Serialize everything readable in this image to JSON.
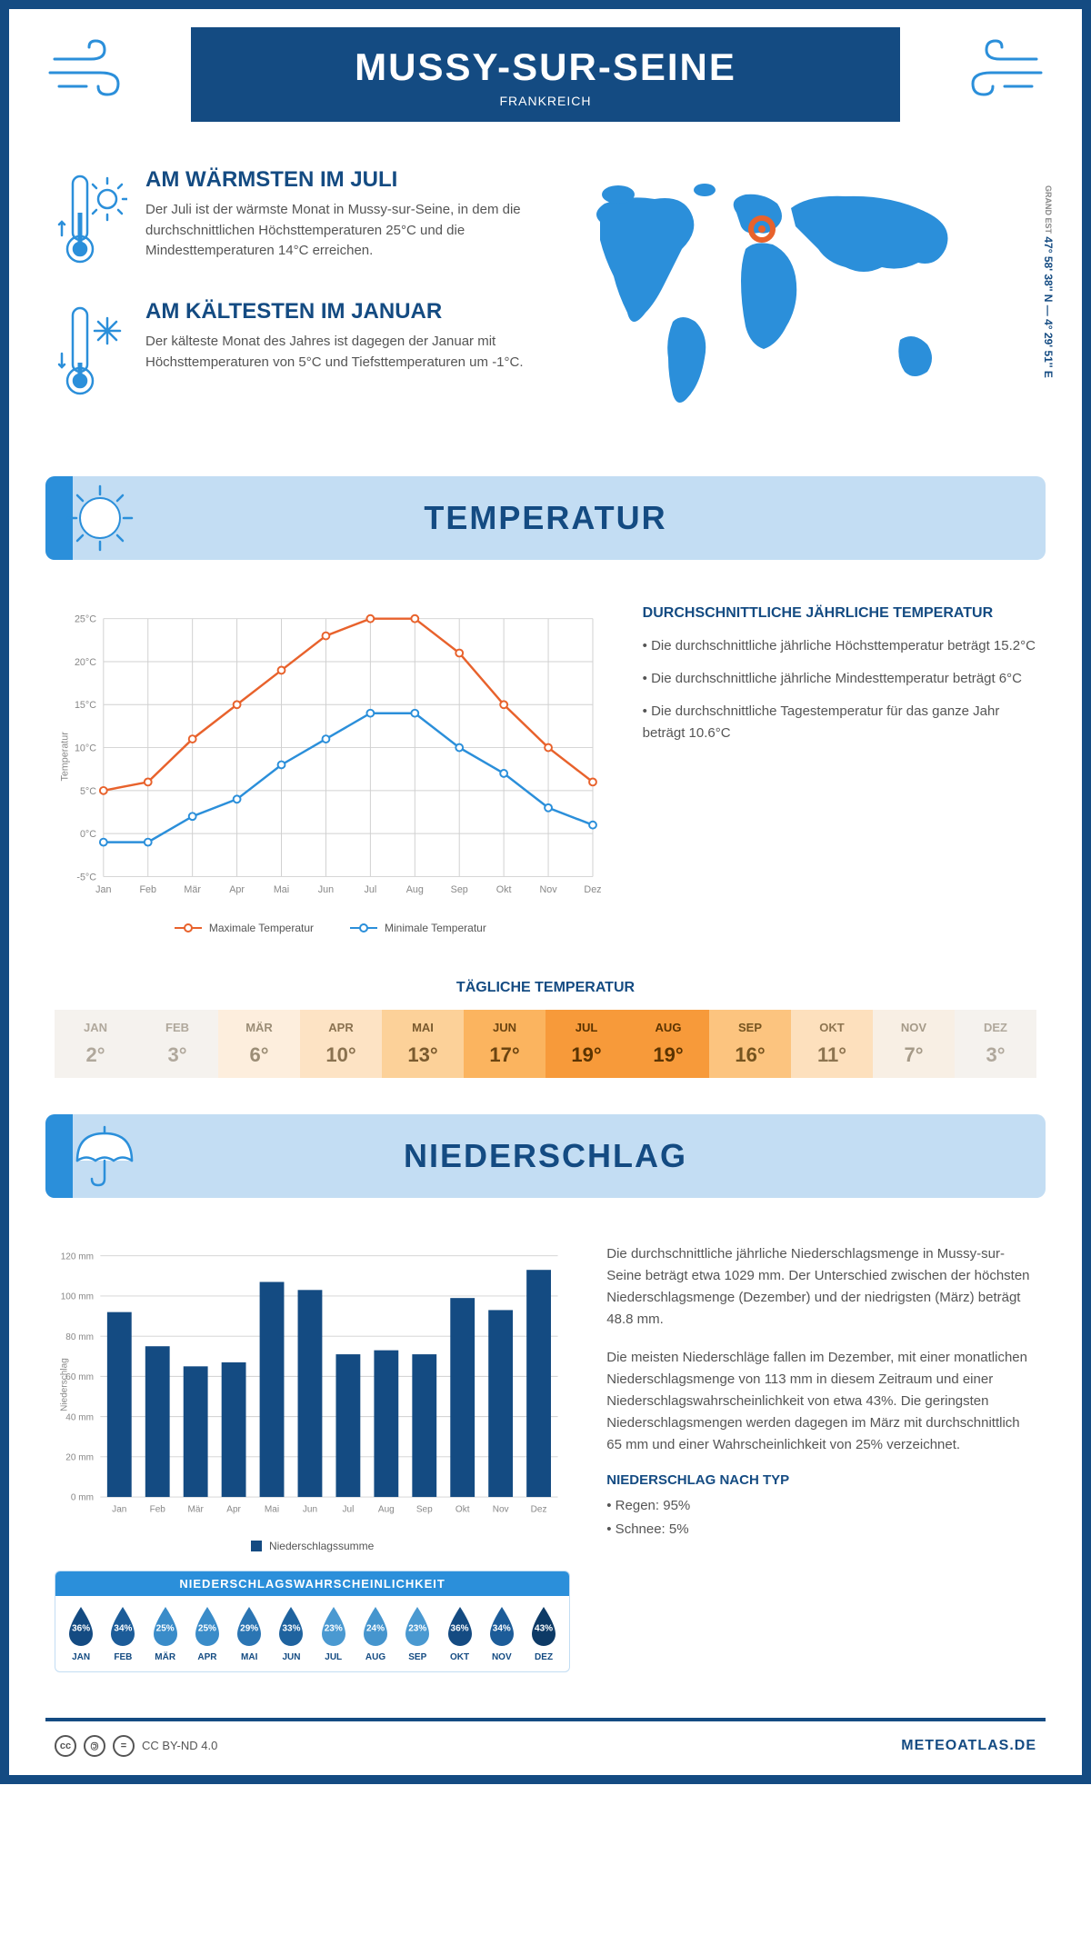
{
  "header": {
    "title": "MUSSY-SUR-SEINE",
    "subtitle": "FRANKREICH"
  },
  "coords": {
    "main": "47° 58' 38'' N — 4° 29' 51'' E",
    "sub": "GRAND EST"
  },
  "facts": {
    "warm": {
      "title": "AM WÄRMSTEN IM JULI",
      "text": "Der Juli ist der wärmste Monat in Mussy-sur-Seine, in dem die durchschnittlichen Höchsttemperaturen 25°C und die Mindesttemperaturen 14°C erreichen."
    },
    "cold": {
      "title": "AM KÄLTESTEN IM JANUAR",
      "text": "Der kälteste Monat des Jahres ist dagegen der Januar mit Höchsttemperaturen von 5°C und Tiefsttemperaturen um -1°C."
    }
  },
  "temperature": {
    "section_title": "TEMPERATUR",
    "info_title": "DURCHSCHNITTLICHE JÄHRLICHE TEMPERATUR",
    "bullets": [
      "• Die durchschnittliche jährliche Höchsttemperatur beträgt 15.2°C",
      "• Die durchschnittliche jährliche Mindesttemperatur beträgt 6°C",
      "• Die durchschnittliche Tagestemperatur für das ganze Jahr beträgt 10.6°C"
    ],
    "chart": {
      "months": [
        "Jan",
        "Feb",
        "Mär",
        "Apr",
        "Mai",
        "Jun",
        "Jul",
        "Aug",
        "Sep",
        "Okt",
        "Nov",
        "Dez"
      ],
      "max_values": [
        5,
        6,
        11,
        15,
        19,
        23,
        25,
        25,
        21,
        15,
        10,
        6
      ],
      "min_values": [
        -1,
        -1,
        2,
        4,
        8,
        11,
        14,
        14,
        10,
        7,
        3,
        1
      ],
      "max_color": "#e8622c",
      "min_color": "#2b8fda",
      "ylim": [
        -5,
        25
      ],
      "ytick_step": 5,
      "ylabel": "Temperatur",
      "legend_max": "Maximale Temperatur",
      "legend_min": "Minimale Temperatur",
      "grid_color": "#d0d0d0",
      "bg": "#ffffff"
    },
    "daily": {
      "title": "TÄGLICHE TEMPERATUR",
      "months": [
        "JAN",
        "FEB",
        "MÄR",
        "APR",
        "MAI",
        "JUN",
        "JUL",
        "AUG",
        "SEP",
        "OKT",
        "NOV",
        "DEZ"
      ],
      "temps": [
        "2°",
        "3°",
        "6°",
        "10°",
        "13°",
        "17°",
        "19°",
        "19°",
        "16°",
        "11°",
        "7°",
        "3°"
      ],
      "bg_colors": [
        "#f5f2ee",
        "#f5f2ee",
        "#fdeedd",
        "#fde3c4",
        "#fcd199",
        "#fbb45f",
        "#f79a3a",
        "#f79a3a",
        "#fcc47f",
        "#fde0bd",
        "#f8efe4",
        "#f5f2ee"
      ],
      "text_colors": [
        "#b0a89c",
        "#b0a89c",
        "#9b8d76",
        "#8a7250",
        "#7a5a2e",
        "#6b4410",
        "#5a3300",
        "#5a3300",
        "#76541f",
        "#8d7450",
        "#a59a88",
        "#b0a89c"
      ]
    }
  },
  "precipitation": {
    "section_title": "NIEDERSCHLAG",
    "text1": "Die durchschnittliche jährliche Niederschlagsmenge in Mussy-sur-Seine beträgt etwa 1029 mm. Der Unterschied zwischen der höchsten Niederschlagsmenge (Dezember) und der niedrigsten (März) beträgt 48.8 mm.",
    "text2": "Die meisten Niederschläge fallen im Dezember, mit einer monatlichen Niederschlagsmenge von 113 mm in diesem Zeitraum und einer Niederschlagswahrscheinlichkeit von etwa 43%. Die geringsten Niederschlagsmengen werden dagegen im März mit durchschnittlich 65 mm und einer Wahrscheinlichkeit von 25% verzeichnet.",
    "type_title": "NIEDERSCHLAG NACH TYP",
    "type_bullets": [
      "• Regen: 95%",
      "• Schnee: 5%"
    ],
    "chart": {
      "months": [
        "Jan",
        "Feb",
        "Mär",
        "Apr",
        "Mai",
        "Jun",
        "Jul",
        "Aug",
        "Sep",
        "Okt",
        "Nov",
        "Dez"
      ],
      "values": [
        92,
        75,
        65,
        67,
        107,
        103,
        71,
        73,
        71,
        99,
        93,
        113
      ],
      "bar_color": "#144b82",
      "ylim": [
        0,
        120
      ],
      "ytick_step": 20,
      "ylabel": "Niederschlag",
      "legend": "Niederschlagssumme",
      "grid_color": "#d0d0d0"
    },
    "probability": {
      "title": "NIEDERSCHLAGSWAHRSCHEINLICHKEIT",
      "months": [
        "JAN",
        "FEB",
        "MÄR",
        "APR",
        "MAI",
        "JUN",
        "JUL",
        "AUG",
        "SEP",
        "OKT",
        "NOV",
        "DEZ"
      ],
      "values": [
        "36%",
        "34%",
        "25%",
        "25%",
        "29%",
        "33%",
        "23%",
        "24%",
        "23%",
        "36%",
        "34%",
        "43%"
      ],
      "colors": [
        "#144b82",
        "#1c5c99",
        "#3a8cc9",
        "#3a8cc9",
        "#2b75b3",
        "#1f639f",
        "#4a99d1",
        "#4595ce",
        "#4a99d1",
        "#144b82",
        "#1c5c99",
        "#0d3a66"
      ]
    }
  },
  "footer": {
    "license": "CC BY-ND 4.0",
    "brand": "METEOATLAS.DE"
  }
}
